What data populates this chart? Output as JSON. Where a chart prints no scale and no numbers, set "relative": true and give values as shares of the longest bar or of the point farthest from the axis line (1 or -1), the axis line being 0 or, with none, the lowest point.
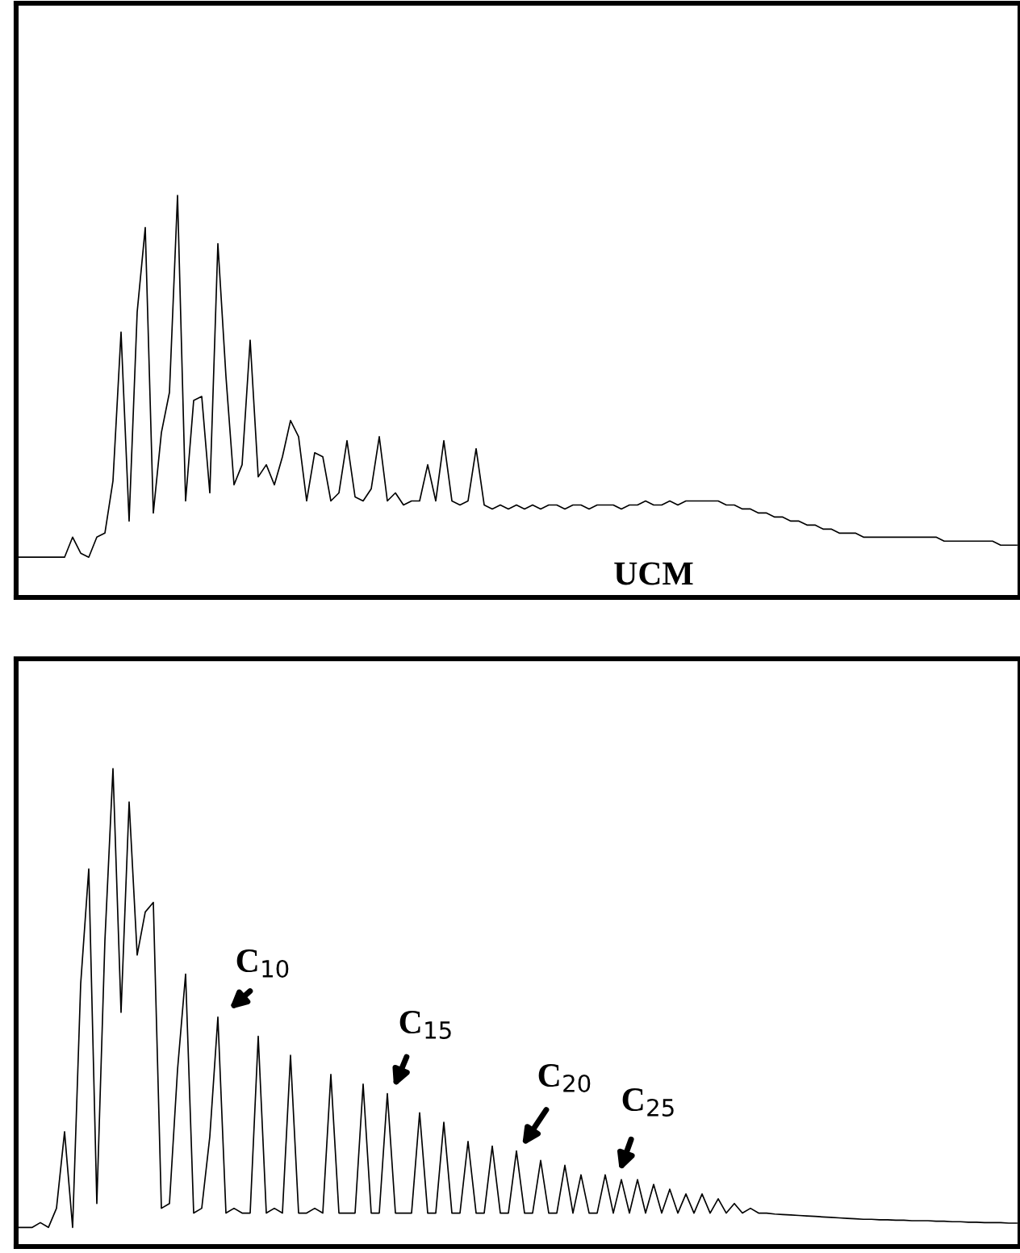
{
  "chart_data": [
    {
      "type": "line",
      "relative": true,
      "marker": "none",
      "line_style": "solid",
      "categories": [
        null,
        null,
        null,
        null,
        null,
        null,
        null,
        null,
        null,
        null,
        null,
        null,
        null,
        null,
        null,
        null,
        null,
        null,
        null,
        null,
        null,
        null,
        null,
        null,
        null,
        null,
        null,
        null,
        null,
        null,
        null,
        null,
        null,
        null,
        null,
        null,
        null,
        null,
        null,
        null,
        null,
        null,
        null,
        null,
        null,
        null,
        null,
        null,
        null,
        null,
        null,
        null,
        null,
        null,
        null,
        null,
        null,
        null,
        null,
        null,
        null,
        null,
        null,
        null,
        null,
        null,
        null,
        null,
        null,
        null,
        null,
        null,
        null,
        null,
        null,
        null,
        null,
        null,
        null,
        null,
        null,
        null,
        null,
        null,
        null,
        null,
        null,
        null,
        null,
        null,
        null,
        null,
        null,
        null,
        null,
        null,
        null,
        null,
        null,
        null,
        null,
        null,
        null,
        null,
        null,
        null,
        null,
        null,
        null,
        null,
        null,
        null,
        null,
        null,
        null,
        null,
        null,
        null,
        null,
        null,
        null,
        null,
        null,
        null,
        null
      ],
      "series": [
        {
          "color": "#000000",
          "values": [
            0.1,
            0.1,
            0.1,
            0.1,
            0.1,
            0.1,
            0.1,
            0.15,
            0.11,
            0.1,
            0.15,
            0.16,
            0.29,
            0.66,
            0.19,
            0.71,
            0.92,
            0.21,
            0.41,
            0.51,
            1.0,
            0.24,
            0.49,
            0.5,
            0.26,
            0.88,
            0.55,
            0.28,
            0.33,
            0.64,
            0.3,
            0.33,
            0.28,
            0.35,
            0.44,
            0.4,
            0.24,
            0.36,
            0.35,
            0.24,
            0.26,
            0.39,
            0.25,
            0.24,
            0.27,
            0.4,
            0.24,
            0.26,
            0.23,
            0.24,
            0.24,
            0.33,
            0.24,
            0.39,
            0.24,
            0.23,
            0.24,
            0.37,
            0.23,
            0.22,
            0.23,
            0.22,
            0.23,
            0.22,
            0.23,
            0.22,
            0.23,
            0.23,
            0.22,
            0.23,
            0.23,
            0.22,
            0.23,
            0.23,
            0.23,
            0.22,
            0.23,
            0.23,
            0.24,
            0.23,
            0.23,
            0.24,
            0.23,
            0.24,
            0.24,
            0.24,
            0.24,
            0.24,
            0.23,
            0.23,
            0.22,
            0.22,
            0.21,
            0.21,
            0.2,
            0.2,
            0.19,
            0.19,
            0.18,
            0.18,
            0.17,
            0.17,
            0.16,
            0.16,
            0.16,
            0.15,
            0.15,
            0.15,
            0.15,
            0.15,
            0.15,
            0.15,
            0.15,
            0.15,
            0.15,
            0.14,
            0.14,
            0.14,
            0.14,
            0.14,
            0.14,
            0.14,
            0.13,
            0.13,
            0.13
          ]
        }
      ],
      "annotations": [
        "UCM"
      ]
    },
    {
      "type": "line",
      "relative": true,
      "marker": "none",
      "line_style": "solid",
      "categories": [
        null,
        null,
        null,
        null,
        null,
        null,
        null,
        null,
        null,
        null,
        null,
        null,
        null,
        null,
        null,
        null,
        null,
        null,
        null,
        null,
        null,
        null,
        null,
        null,
        null,
        null,
        null,
        null,
        null,
        null,
        null,
        null,
        null,
        null,
        null,
        null,
        null,
        null,
        null,
        null,
        null,
        null,
        null,
        null,
        null,
        null,
        null,
        null,
        null,
        null,
        null,
        null,
        null,
        null,
        null,
        null,
        null,
        null,
        null,
        null,
        null,
        null,
        null,
        null,
        null,
        null,
        null,
        null,
        null,
        null,
        null,
        null,
        null,
        null,
        null,
        null,
        null,
        null,
        null,
        null,
        null,
        null,
        null,
        null,
        null,
        null,
        null,
        null,
        null,
        null,
        null,
        null,
        null,
        null,
        null,
        null,
        null,
        null,
        null,
        null,
        null,
        null,
        null,
        null,
        null,
        null,
        null,
        null,
        null,
        null,
        null,
        null,
        null,
        null,
        null,
        null,
        null,
        null,
        null,
        null,
        null,
        null,
        null,
        null,
        null
      ],
      "series": [
        {
          "color": "#000000",
          "values": [
            0.04,
            0.04,
            0.04,
            0.05,
            0.04,
            0.08,
            0.24,
            0.04,
            0.55,
            0.79,
            0.09,
            0.64,
            1.0,
            0.49,
            0.93,
            0.61,
            0.7,
            0.72,
            0.08,
            0.09,
            0.37,
            0.57,
            0.07,
            0.08,
            0.23,
            0.48,
            0.07,
            0.08,
            0.07,
            0.07,
            0.44,
            0.07,
            0.08,
            0.07,
            0.4,
            0.07,
            0.07,
            0.08,
            0.07,
            0.36,
            0.07,
            0.07,
            0.07,
            0.34,
            0.07,
            0.07,
            0.32,
            0.07,
            0.07,
            0.07,
            0.28,
            0.07,
            0.07,
            0.26,
            0.07,
            0.07,
            0.22,
            0.07,
            0.07,
            0.21,
            0.07,
            0.07,
            0.2,
            0.07,
            0.07,
            0.18,
            0.07,
            0.07,
            0.17,
            0.07,
            0.15,
            0.07,
            0.07,
            0.15,
            0.07,
            0.14,
            0.07,
            0.14,
            0.07,
            0.13,
            0.07,
            0.12,
            0.07,
            0.11,
            0.07,
            0.11,
            0.07,
            0.1,
            0.07,
            0.09,
            0.07,
            0.08,
            0.07,
            0.07,
            0.068,
            0.067,
            0.066,
            0.065,
            0.064,
            0.063,
            0.062,
            0.061,
            0.06,
            0.059,
            0.058,
            0.057,
            0.057,
            0.056,
            0.056,
            0.055,
            0.055,
            0.054,
            0.054,
            0.054,
            0.053,
            0.053,
            0.052,
            0.052,
            0.051,
            0.051,
            0.05,
            0.05,
            0.05,
            0.049,
            0.049
          ]
        }
      ],
      "annotations": [
        "C$_{10}$",
        "C$_{15}$",
        "C$_{20}$",
        "C$_{25}$"
      ]
    }
  ]
}
